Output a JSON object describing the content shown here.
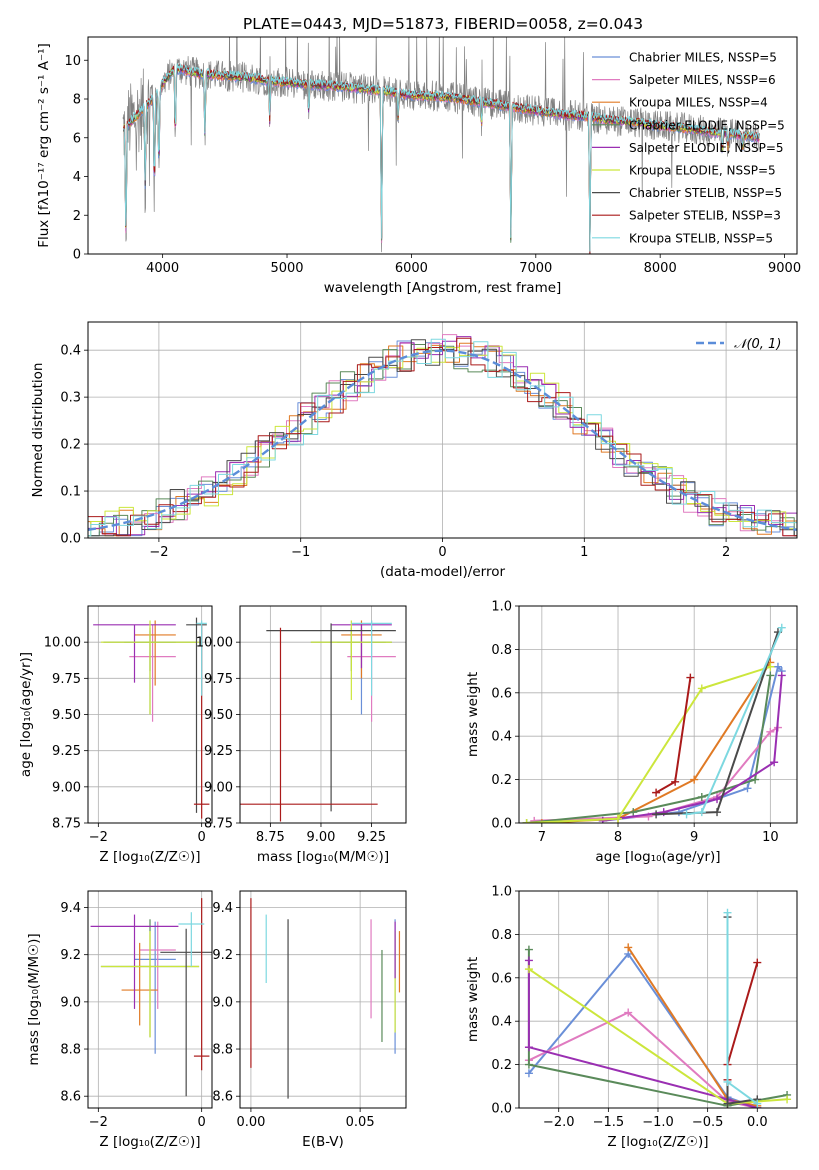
{
  "figure_title": "PLATE=0443, MJD=51873, FIBERID=0058, z=0.043",
  "series_colors": {
    "Chabrier MILES": "#6a8fd8",
    "Salpeter MILES": "#e07bc0",
    "Kroupa MILES": "#e07a25",
    "Chabrier ELODIE": "#5a8a5a",
    "Salpeter ELODIE": "#9a2fb2",
    "Kroupa ELODIE": "#cce63c",
    "Chabrier STELIB": "#4a4a4a",
    "Salpeter STELIB": "#aa1a1a",
    "Kroupa STELIB": "#7dd8e0",
    "normal": "#5b8dd9",
    "data_spectrum": "#808080"
  },
  "chart_data": [
    {
      "id": "spectrum",
      "type": "line",
      "xlabel": "wavelength [Angstrom, rest frame]",
      "ylabel": "Flux [fλ10⁻¹⁷ erg cm⁻² s⁻¹ A⁻¹]",
      "xlim": [
        3400,
        9100
      ],
      "ylim": [
        0,
        11.2
      ],
      "xticks": [
        4000,
        5000,
        6000,
        7000,
        8000,
        9000
      ],
      "yticks": [
        0,
        2,
        4,
        6,
        8,
        10
      ],
      "legend_position": "top-right",
      "legend": [
        "Chabrier MILES, NSSP=5",
        "Salpeter MILES, NSSP=6",
        "Kroupa MILES, NSSP=4",
        "Chabrier ELODIE, NSSP=5",
        "Salpeter ELODIE, NSSP=5",
        "Kroupa ELODIE, NSSP=5",
        "Chabrier STELIB, NSSP=5",
        "Salpeter STELIB, NSSP=3",
        "Kroupa STELIB, NSSP=5"
      ],
      "continuum": {
        "x": [
          3680,
          3800,
          3950,
          4000,
          4100,
          4300,
          4500,
          4700,
          4900,
          5100,
          5300,
          5500,
          5800,
          6000,
          6300,
          6600,
          6800,
          7000,
          7200,
          7400,
          7600,
          7800,
          8000,
          8200,
          8400,
          8600,
          8800
        ],
        "y": [
          6.4,
          7.2,
          8.2,
          8.8,
          9.6,
          9.3,
          9.2,
          9.1,
          8.9,
          8.8,
          8.7,
          8.6,
          8.4,
          8.2,
          8.1,
          7.8,
          7.6,
          7.4,
          7.2,
          7.1,
          6.9,
          6.8,
          6.6,
          6.5,
          6.3,
          6.2,
          6.0
        ]
      },
      "dips": [
        {
          "x": 3705,
          "y": 0.0
        },
        {
          "x": 3860,
          "y": 3.2
        },
        {
          "x": 3934,
          "y": 2.7
        },
        {
          "x": 3970,
          "y": 3.9
        },
        {
          "x": 4102,
          "y": 5.6
        },
        {
          "x": 4340,
          "y": 5.9
        },
        {
          "x": 4861,
          "y": 6.9
        },
        {
          "x": 5175,
          "y": 7.1
        },
        {
          "x": 5760,
          "y": 0.0
        },
        {
          "x": 5893,
          "y": 7.0
        },
        {
          "x": 6563,
          "y": 6.6
        },
        {
          "x": 6800,
          "y": 0.0
        },
        {
          "x": 7435,
          "y": 0.0
        },
        {
          "x": 8500,
          "y": 5.2
        },
        {
          "x": 8544,
          "y": 5.5
        },
        {
          "x": 8662,
          "y": 5.4
        }
      ]
    },
    {
      "id": "residuals",
      "type": "area",
      "xlabel": "(data-model)/error",
      "ylabel": "Normed distribution",
      "xlim": [
        -2.5,
        2.5
      ],
      "ylim": [
        0,
        0.46
      ],
      "xticks": [
        -2,
        -1,
        0,
        1,
        2
      ],
      "yticks": [
        0.0,
        0.1,
        0.2,
        0.3,
        0.4
      ],
      "bin_width": 0.1,
      "normal_label": "𝒩(0, 1)",
      "normal": {
        "mean": 0,
        "sigma": 1
      }
    },
    {
      "id": "age_vs_Z",
      "type": "scatter",
      "xlabel": "Z [log₁₀(Z/Z☉)]",
      "ylabel": "age  [log₁₀(age/yr)]",
      "xlim": [
        -2.2,
        0.2
      ],
      "ylim": [
        8.75,
        10.25
      ],
      "xticks": [
        -2,
        0
      ],
      "yticks": [
        8.75,
        9.0,
        9.25,
        9.5,
        9.75,
        10.0
      ],
      "points": [
        {
          "s": "Chabrier MILES",
          "x": -1.0,
          "y": 10.0,
          "xerr": 0.5,
          "yerr": [
            0.5,
            0.08
          ]
        },
        {
          "s": "Salpeter MILES",
          "x": -0.95,
          "y": 9.9,
          "xerr": 0.45,
          "yerr": [
            0.45,
            0.22
          ]
        },
        {
          "s": "Kroupa MILES",
          "x": -0.9,
          "y": 10.05,
          "xerr": 0.4,
          "yerr": [
            0.35,
            0.1
          ]
        },
        {
          "s": "Chabrier ELODIE",
          "x": -1.0,
          "y": 10.0,
          "xerr": 0.9,
          "yerr": [
            0.2,
            0.1
          ]
        },
        {
          "s": "Salpeter ELODIE",
          "x": -1.3,
          "y": 10.12,
          "xerr": 0.8,
          "yerr": [
            0.4,
            0.0
          ]
        },
        {
          "s": "Kroupa ELODIE",
          "x": -1.0,
          "y": 10.0,
          "xerr": 0.95,
          "yerr": [
            0.5,
            0.15
          ]
        },
        {
          "s": "Chabrier STELIB",
          "x": -0.1,
          "y": 10.12,
          "xerr": 0.2,
          "yerr": [
            1.3,
            0.05
          ]
        },
        {
          "s": "Salpeter STELIB",
          "x": 0.0,
          "y": 8.88,
          "xerr": 0.15,
          "yerr": [
            0.1,
            1.25
          ]
        },
        {
          "s": "Kroupa STELIB",
          "x": 0.0,
          "y": 10.13,
          "xerr": 0.1,
          "yerr": [
            0.5,
            0.02
          ]
        }
      ]
    },
    {
      "id": "age_vs_mass",
      "type": "scatter",
      "xlabel": "mass [log₁₀(M/M☉)]",
      "ylabel": "",
      "xlim": [
        8.6,
        9.42
      ],
      "ylim": [
        8.75,
        10.25
      ],
      "xticks": [
        8.75,
        9.0,
        9.25
      ],
      "yticks": [
        8.75,
        9.0,
        9.25,
        9.5,
        9.75,
        10.0
      ],
      "points": [
        {
          "s": "Chabrier MILES",
          "x": 9.2,
          "y": 10.0,
          "xerr": 0.12,
          "yerr": [
            0.5,
            0.1
          ]
        },
        {
          "s": "Salpeter MILES",
          "x": 9.25,
          "y": 9.9,
          "xerr": 0.12,
          "yerr": [
            0.45,
            0.25
          ]
        },
        {
          "s": "Kroupa MILES",
          "x": 9.2,
          "y": 10.05,
          "xerr": 0.1,
          "yerr": [
            0.3,
            0.1
          ]
        },
        {
          "s": "Chabrier ELODIE",
          "x": 9.15,
          "y": 10.0,
          "xerr": 0.2,
          "yerr": [
            0.2,
            0.1
          ]
        },
        {
          "s": "Salpeter ELODIE",
          "x": 9.2,
          "y": 10.12,
          "xerr": 0.15,
          "yerr": [
            0.3,
            0.0
          ]
        },
        {
          "s": "Kroupa ELODIE",
          "x": 9.15,
          "y": 10.0,
          "xerr": 0.2,
          "yerr": [
            0.4,
            0.15
          ]
        },
        {
          "s": "Chabrier STELIB",
          "x": 9.05,
          "y": 10.08,
          "xerr": 0.32,
          "yerr": [
            1.25,
            0.05
          ]
        },
        {
          "s": "Salpeter STELIB",
          "x": 8.8,
          "y": 8.88,
          "xerr": 0.48,
          "yerr": [
            0.12,
            1.22
          ]
        },
        {
          "s": "Kroupa STELIB",
          "x": 9.25,
          "y": 10.13,
          "xerr": 0.1,
          "yerr": [
            0.5,
            0.02
          ]
        }
      ]
    },
    {
      "id": "massweight_vs_age",
      "type": "line",
      "xlabel": "age  [log₁₀(age/yr)]",
      "ylabel": "mass weight",
      "xlim": [
        6.7,
        10.35
      ],
      "ylim": [
        0,
        1.0
      ],
      "xticks": [
        7,
        8,
        9,
        10
      ],
      "yticks": [
        0.0,
        0.2,
        0.4,
        0.6,
        0.8,
        1.0
      ],
      "series": [
        {
          "name": "Chabrier MILES",
          "x": [
            7.8,
            8.8,
            9.7,
            10.1,
            10.15
          ],
          "y": [
            0.01,
            0.05,
            0.16,
            0.72,
            0.7
          ]
        },
        {
          "name": "Salpeter MILES",
          "x": [
            6.9,
            8.4,
            9.3,
            10.0,
            10.1
          ],
          "y": [
            0.01,
            0.03,
            0.12,
            0.42,
            0.44
          ]
        },
        {
          "name": "Kroupa MILES",
          "x": [
            7.0,
            8.0,
            9.0,
            10.0
          ],
          "y": [
            0.0,
            0.02,
            0.2,
            0.74
          ]
        },
        {
          "name": "Chabrier ELODIE",
          "x": [
            6.8,
            8.2,
            9.1,
            9.8,
            10.0
          ],
          "y": [
            0.0,
            0.05,
            0.12,
            0.2,
            0.68
          ]
        },
        {
          "name": "Salpeter ELODIE",
          "x": [
            7.8,
            8.6,
            9.3,
            10.05,
            10.15
          ],
          "y": [
            0.01,
            0.05,
            0.11,
            0.28,
            0.68
          ]
        },
        {
          "name": "Kroupa ELODIE",
          "x": [
            6.8,
            8.0,
            9.1,
            10.0
          ],
          "y": [
            0.0,
            0.02,
            0.62,
            0.72
          ]
        },
        {
          "name": "Chabrier STELIB",
          "x": [
            8.5,
            9.3,
            10.1
          ],
          "y": [
            0.04,
            0.05,
            0.88
          ]
        },
        {
          "name": "Salpeter STELIB",
          "x": [
            8.5,
            8.75,
            8.95
          ],
          "y": [
            0.14,
            0.19,
            0.67
          ]
        },
        {
          "name": "Kroupa STELIB",
          "x": [
            8.9,
            9.1,
            10.15
          ],
          "y": [
            0.04,
            0.05,
            0.9
          ]
        }
      ]
    },
    {
      "id": "mass_vs_Z",
      "type": "scatter",
      "xlabel": "Z [log₁₀(Z/Z☉)]",
      "ylabel": "mass [log₁₀(M/M☉)]",
      "xlim": [
        -2.2,
        0.2
      ],
      "ylim": [
        8.55,
        9.47
      ],
      "xticks": [
        -2,
        0
      ],
      "yticks": [
        8.6,
        8.8,
        9.0,
        9.2,
        9.4
      ],
      "points": [
        {
          "s": "Chabrier MILES",
          "x": -0.9,
          "y": 9.18,
          "xerr": 0.4,
          "yerr": [
            0.4,
            0.16
          ]
        },
        {
          "s": "Salpeter MILES",
          "x": -0.85,
          "y": 9.22,
          "xerr": 0.35,
          "yerr": [
            0.25,
            0.12
          ]
        },
        {
          "s": "Kroupa MILES",
          "x": -1.2,
          "y": 9.05,
          "xerr": 0.35,
          "yerr": [
            0.15,
            0.2
          ]
        },
        {
          "s": "Chabrier ELODIE",
          "x": -1.0,
          "y": 9.15,
          "xerr": 0.95,
          "yerr": [
            0.3,
            0.2
          ]
        },
        {
          "s": "Salpeter ELODIE",
          "x": -1.3,
          "y": 9.32,
          "xerr": 0.85,
          "yerr": [
            0.35,
            0.05
          ]
        },
        {
          "s": "Kroupa ELODIE",
          "x": -1.0,
          "y": 9.15,
          "xerr": 0.95,
          "yerr": [
            0.3,
            0.15
          ]
        },
        {
          "s": "Chabrier STELIB",
          "x": -0.3,
          "y": 9.21,
          "xerr": 0.5,
          "yerr": [
            0.61,
            0.1
          ]
        },
        {
          "s": "Salpeter STELIB",
          "x": 0.0,
          "y": 8.77,
          "xerr": 0.15,
          "yerr": [
            0.06,
            0.67
          ]
        },
        {
          "s": "Kroupa STELIB",
          "x": -0.2,
          "y": 9.33,
          "xerr": 0.25,
          "yerr": [
            0.18,
            0.05
          ]
        }
      ]
    },
    {
      "id": "mass_vs_EBV",
      "type": "scatter",
      "xlabel": "E(B-V)",
      "ylabel": "",
      "xlim": [
        -0.005,
        0.071
      ],
      "ylim": [
        8.55,
        9.47
      ],
      "xticks": [
        0.0,
        0.05
      ],
      "yticks": [
        8.6,
        8.8,
        9.0,
        9.2,
        9.4
      ],
      "points": [
        {
          "s": "Salpeter STELIB",
          "x": 0.0,
          "y": 9.1,
          "yerr": [
            0.38,
            0.34
          ]
        },
        {
          "s": "Kroupa STELIB",
          "x": 0.007,
          "y": 9.25,
          "yerr": [
            0.17,
            0.12
          ]
        },
        {
          "s": "Chabrier STELIB",
          "x": 0.017,
          "y": 9.0,
          "yerr": [
            0.41,
            0.35
          ]
        },
        {
          "s": "Salpeter MILES",
          "x": 0.055,
          "y": 9.15,
          "yerr": [
            0.22,
            0.2
          ]
        },
        {
          "s": "Chabrier ELODIE",
          "x": 0.06,
          "y": 9.05,
          "yerr": [
            0.22,
            0.17
          ]
        },
        {
          "s": "Chabrier MILES",
          "x": 0.066,
          "y": 9.1,
          "yerr": [
            0.32,
            0.25
          ]
        },
        {
          "s": "Kroupa ELODIE",
          "x": 0.066,
          "y": 9.1,
          "yerr": [
            0.23,
            0.2
          ]
        },
        {
          "s": "Salpeter ELODIE",
          "x": 0.066,
          "y": 9.22,
          "yerr": [
            0.12,
            0.12
          ]
        },
        {
          "s": "Kroupa MILES",
          "x": 0.068,
          "y": 9.17,
          "yerr": [
            0.13,
            0.13
          ]
        }
      ]
    },
    {
      "id": "massweight_vs_Z",
      "type": "line",
      "xlabel": "Z [log₁₀(Z/Z☉)]",
      "ylabel": "mass weight",
      "xlim": [
        -2.4,
        0.4
      ],
      "ylim": [
        0,
        1.0
      ],
      "xticks": [
        -2.0,
        -1.5,
        -1.0,
        -0.5,
        0.0
      ],
      "yticks": [
        0.0,
        0.2,
        0.4,
        0.6,
        0.8,
        1.0
      ],
      "series": [
        {
          "name": "Chabrier MILES",
          "x": [
            -2.3,
            -1.3,
            -0.3,
            0.0
          ],
          "y": [
            0.16,
            0.71,
            0.05,
            0.0
          ]
        },
        {
          "name": "Salpeter MILES",
          "x": [
            -2.3,
            -1.3,
            -0.3,
            0.0
          ],
          "y": [
            0.22,
            0.44,
            0.03,
            0.0
          ]
        },
        {
          "name": "Kroupa MILES",
          "x": [
            -1.3,
            -0.3,
            0.0
          ],
          "y": [
            0.74,
            0.04,
            0.01
          ]
        },
        {
          "name": "Chabrier ELODIE",
          "x": [
            -2.3,
            -2.3,
            -0.3,
            0.3
          ],
          "y": [
            0.73,
            0.2,
            0.01,
            0.06
          ]
        },
        {
          "name": "Salpeter ELODIE",
          "x": [
            -2.3,
            -2.3,
            -0.3,
            0.0
          ],
          "y": [
            0.68,
            0.28,
            0.04,
            0.0
          ]
        },
        {
          "name": "Kroupa ELODIE",
          "x": [
            -2.3,
            -0.3,
            0.3
          ],
          "y": [
            0.64,
            0.02,
            0.04
          ]
        },
        {
          "name": "Chabrier STELIB",
          "x": [
            -0.3,
            -0.3,
            0.0
          ],
          "y": [
            0.88,
            0.02,
            0.04
          ]
        },
        {
          "name": "Salpeter STELIB",
          "x": [
            -0.3,
            -0.3,
            0.0
          ],
          "y": [
            0.13,
            0.2,
            0.67
          ]
        },
        {
          "name": "Kroupa STELIB",
          "x": [
            -0.3,
            -0.3,
            0.0
          ],
          "y": [
            0.9,
            0.12,
            0.02
          ]
        }
      ]
    }
  ]
}
